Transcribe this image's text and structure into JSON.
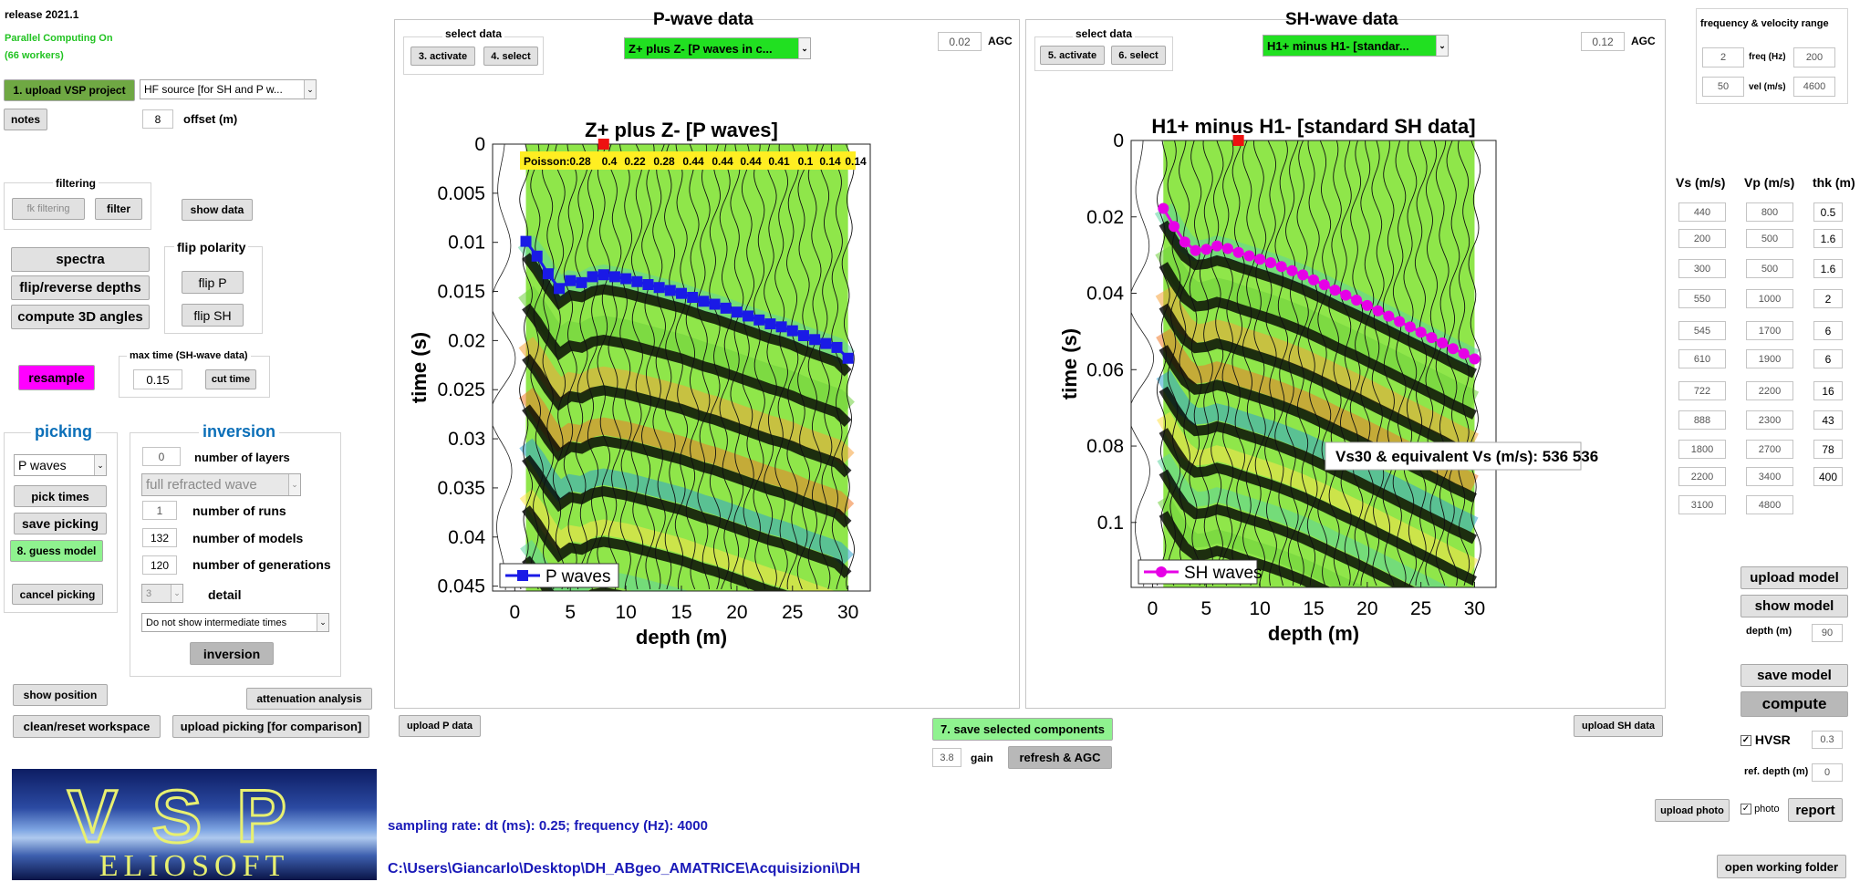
{
  "release": "release 2021.1",
  "parallel": {
    "line1": "Parallel Computing On",
    "line2": "(66 workers)"
  },
  "left": {
    "upload_vsp": "1. upload VSP project",
    "source_select": "HF source [for SH and P w...",
    "notes": "notes",
    "offset_value": "8",
    "offset_label": "offset (m)",
    "filtering_title": "filtering",
    "fk_filtering": "fk filtering",
    "filter": "filter",
    "show_data": "show data",
    "spectra": "spectra",
    "flip_reverse": "flip/reverse depths",
    "compute_3d": "compute 3D angles",
    "flip_polarity_title": "flip polarity",
    "flip_p": "flip P",
    "flip_sh": "flip SH",
    "resample": "resample",
    "max_time_title": "max time (SH-wave data)",
    "max_time_value": "0.15",
    "cut_time": "cut time",
    "picking_title": "picking",
    "picking_select": "P waves",
    "pick_times": "pick times",
    "save_picking": "save picking",
    "guess_model": "8. guess model",
    "cancel_picking": "cancel picking",
    "inversion_title": "inversion",
    "layers_value": "0",
    "layers_label": "number of layers",
    "wave_select": "full refracted wave",
    "runs_value": "1",
    "runs_label": "number of runs",
    "models_value": "132",
    "models_label": "number of models",
    "generations_value": "120",
    "generations_label": "number of generations",
    "detail_value": "3",
    "detail_label": "detail",
    "intermediate_select": "Do not show intermediate times",
    "inversion_btn": "inversion",
    "show_position": "show position",
    "attenuation": "attenuation analysis",
    "clean_reset": "clean/reset workspace",
    "upload_picking": "upload picking [for comparison]"
  },
  "logo": {
    "top": "VSP",
    "bottom": "ELIOSOFT"
  },
  "sampling": "sampling rate: dt (ms): 0.25; frequency (Hz): 4000",
  "path": "C:\\Users\\Giancarlo\\Desktop\\DH_ABgeo_AMATRICE\\Acquisizioni\\DH",
  "p_panel": {
    "title": "P-wave data",
    "select_title": "select data",
    "activate": "3. activate",
    "select": "4. select",
    "component": "Z+ plus Z- [P waves in c...",
    "agc_value": "0.02",
    "agc_label": "AGC",
    "upload": "upload P data"
  },
  "sh_panel": {
    "title": "SH-wave data",
    "select_title": "select data",
    "activate": "5. activate",
    "select": "6. select",
    "component": "H1+ minus H1-  [standar...",
    "agc_value": "0.12",
    "agc_label": "AGC",
    "upload": "upload SH data"
  },
  "center": {
    "save_selected": "7. save selected components",
    "gain_value": "3.8",
    "gain_label": "gain",
    "refresh_agc": "refresh & AGC"
  },
  "right": {
    "range_title": "frequency & velocity range",
    "freq_min": "2",
    "freq_label": "freq (Hz)",
    "freq_max": "200",
    "vel_min": "50",
    "vel_label": "vel (m/s)",
    "vel_max": "4600",
    "headers": [
      "Vs (m/s)",
      "Vp (m/s)",
      "thk (m)"
    ],
    "model_rows": [
      {
        "vs": "440",
        "vp": "800",
        "thk": "0.5"
      },
      {
        "vs": "200",
        "vp": "500",
        "thk": "1.6"
      },
      {
        "vs": "300",
        "vp": "500",
        "thk": "1.6"
      },
      {
        "vs": "550",
        "vp": "1000",
        "thk": "2"
      },
      {
        "vs": "545",
        "vp": "1700",
        "thk": "6"
      },
      {
        "vs": "610",
        "vp": "1900",
        "thk": "6"
      },
      {
        "vs": "722",
        "vp": "2200",
        "thk": "16"
      },
      {
        "vs": "888",
        "vp": "2300",
        "thk": "43"
      },
      {
        "vs": "1800",
        "vp": "2700",
        "thk": "78"
      },
      {
        "vs": "2200",
        "vp": "3400",
        "thk": "400"
      },
      {
        "vs": "3100",
        "vp": "4800",
        "thk": ""
      }
    ],
    "upload_model": "upload model",
    "show_model": "show model",
    "depth_label": "depth (m)",
    "depth_value": "90",
    "save_model": "save model",
    "compute": "compute",
    "hvsr_label": "HVSR",
    "hvsr_value": "0.3",
    "ref_depth_label": "ref. depth (m)",
    "ref_depth_value": "0",
    "upload_photo": "upload photo",
    "photo_label": "photo",
    "report": "report",
    "open_folder": "open working folder"
  },
  "chart_data": [
    {
      "type": "line",
      "title": "Z+ plus Z- [P waves]",
      "xlabel": "depth (m)",
      "ylabel": "time (s)",
      "xlim": [
        -2,
        32
      ],
      "ylim": [
        0.0455,
        0
      ],
      "xticks": [
        "0",
        "5",
        "10",
        "15",
        "20",
        "25",
        "30"
      ],
      "yticks": [
        "0",
        "0.005",
        "0.01",
        "0.015",
        "0.02",
        "0.025",
        "0.03",
        "0.035",
        "0.04",
        "0.045"
      ],
      "legend": "bottom-left",
      "series": [
        {
          "name": "P waves",
          "color": "#1a1ae6",
          "x": [
            1,
            2,
            3,
            4,
            5,
            6,
            7,
            8,
            9,
            10,
            11,
            12,
            13,
            14,
            15,
            16,
            17,
            18,
            19,
            20,
            21,
            22,
            23,
            24,
            25,
            26,
            27,
            28,
            29,
            30
          ],
          "y": [
            0.0099,
            0.0114,
            0.0132,
            0.0147,
            0.0139,
            0.0141,
            0.0135,
            0.0133,
            0.0135,
            0.0137,
            0.014,
            0.0143,
            0.0146,
            0.0149,
            0.0152,
            0.0156,
            0.016,
            0.0163,
            0.0167,
            0.0171,
            0.0175,
            0.0179,
            0.0183,
            0.0186,
            0.019,
            0.0195,
            0.0199,
            0.0203,
            0.0207,
            0.0218
          ]
        }
      ],
      "annotation": {
        "label": "Poisson:",
        "values": [
          "0.28",
          "0.4",
          "0.22",
          "0.28",
          "0.44",
          "0.44",
          "0.44",
          "0.41",
          "0.1",
          "0.14",
          "0.14"
        ]
      },
      "offset_marker": 8
    },
    {
      "type": "line",
      "title": "H1+ minus H1- [standard SH data]",
      "xlabel": "depth (m)",
      "ylabel": "time (s)",
      "xlim": [
        -2,
        32
      ],
      "ylim": [
        0.117,
        0
      ],
      "xticks": [
        "0",
        "5",
        "10",
        "15",
        "20",
        "25",
        "30"
      ],
      "yticks": [
        "0",
        "0.02",
        "0.04",
        "0.06",
        "0.08",
        "0.1"
      ],
      "legend": "bottom-left",
      "series": [
        {
          "name": "SH waves",
          "color": "#e600e6",
          "x": [
            1,
            2,
            3,
            4,
            5,
            6,
            7,
            8,
            9,
            10,
            11,
            12,
            13,
            14,
            15,
            16,
            17,
            18,
            19,
            20,
            21,
            22,
            23,
            24,
            25,
            26,
            27,
            28,
            29,
            30
          ],
          "y": [
            0.0178,
            0.0225,
            0.0266,
            0.0288,
            0.0285,
            0.0276,
            0.0283,
            0.0293,
            0.0302,
            0.0311,
            0.032,
            0.033,
            0.0341,
            0.0352,
            0.0365,
            0.0378,
            0.0392,
            0.0405,
            0.0418,
            0.0432,
            0.0446,
            0.046,
            0.0474,
            0.0488,
            0.0502,
            0.0516,
            0.053,
            0.0545,
            0.0558,
            0.0572
          ]
        }
      ],
      "annotation": {
        "label": "Vs30 & equivalent Vs (m/s): 536  536"
      },
      "offset_marker": 8
    }
  ]
}
